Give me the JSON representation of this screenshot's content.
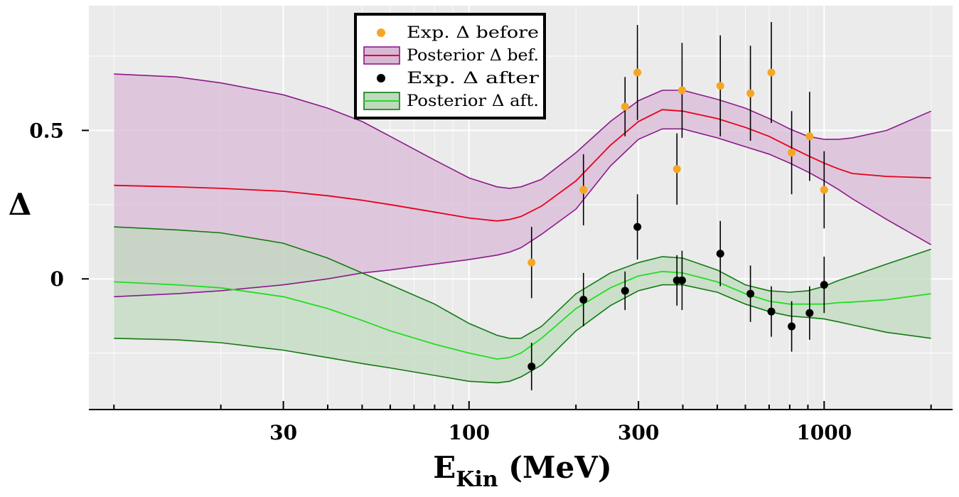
{
  "chart_data": {
    "type": "scatter",
    "xscale": "log",
    "xlim": [
      8.5,
      2300
    ],
    "ylim": [
      -0.44,
      0.92
    ],
    "xlabel": "E",
    "xlabel_sub": "Kin",
    "xlabel_unit": " (MeV)",
    "ylabel": "Δ",
    "xticks": [
      {
        "value": 30,
        "label": "30"
      },
      {
        "value": 100,
        "label": "100"
      },
      {
        "value": 300,
        "label": "300"
      },
      {
        "value": 1000,
        "label": "1000"
      }
    ],
    "yticks": [
      {
        "value": 0.5,
        "label": "0.5"
      },
      {
        "value": 0,
        "label": "0"
      }
    ],
    "minor_yticks": [
      -0.25,
      0.25,
      0.75
    ],
    "minor_xticks": [
      10,
      20,
      40,
      50,
      60,
      70,
      80,
      90,
      200,
      400,
      500,
      600,
      700,
      800,
      900,
      2000
    ],
    "grid": true,
    "legend_position": "top-center",
    "legend": [
      {
        "label": "Exp. Δ  before",
        "kind": "point",
        "color": "#f5a623"
      },
      {
        "label": "Posterior Δ  bef.",
        "kind": "band",
        "line_color": "#e8001c",
        "fill_color": "#d8b8d6",
        "edge_color": "#8b1a8b"
      },
      {
        "label": "Exp. Δ  after",
        "kind": "point",
        "color": "#000000"
      },
      {
        "label": "Posterior Δ  aft.",
        "kind": "band",
        "line_color": "#22dd22",
        "fill_color": "#bfd9be",
        "edge_color": "#127a12"
      }
    ],
    "series": [
      {
        "name": "Posterior Δ  bef.",
        "x": [
          10,
          15,
          20,
          30,
          40,
          50,
          60,
          80,
          100,
          120,
          130,
          140,
          160,
          200,
          250,
          300,
          350,
          400,
          500,
          600,
          700,
          800,
          900,
          1000,
          1100,
          1200,
          1500,
          2000
        ],
        "mean": [
          0.315,
          0.31,
          0.305,
          0.295,
          0.28,
          0.265,
          0.25,
          0.225,
          0.205,
          0.195,
          0.2,
          0.21,
          0.245,
          0.33,
          0.45,
          0.53,
          0.57,
          0.565,
          0.54,
          0.51,
          0.48,
          0.445,
          0.415,
          0.39,
          0.37,
          0.355,
          0.345,
          0.34
        ],
        "lower": [
          -0.06,
          -0.05,
          -0.04,
          -0.02,
          0,
          0.02,
          0.03,
          0.05,
          0.065,
          0.08,
          0.09,
          0.105,
          0.15,
          0.235,
          0.38,
          0.47,
          0.505,
          0.505,
          0.475,
          0.445,
          0.42,
          0.39,
          0.36,
          0.33,
          0.3,
          0.27,
          0.2,
          0.115
        ],
        "upper": [
          0.69,
          0.68,
          0.66,
          0.62,
          0.575,
          0.53,
          0.48,
          0.4,
          0.34,
          0.31,
          0.305,
          0.31,
          0.335,
          0.425,
          0.53,
          0.6,
          0.635,
          0.635,
          0.605,
          0.575,
          0.54,
          0.505,
          0.48,
          0.47,
          0.47,
          0.475,
          0.5,
          0.565
        ],
        "line_color": "#e8001c",
        "fill_color": "#d8b8d6",
        "edge_color": "#8b1a8b"
      },
      {
        "name": "Posterior Δ  aft.",
        "x": [
          10,
          15,
          20,
          30,
          40,
          50,
          60,
          80,
          100,
          120,
          130,
          140,
          160,
          200,
          250,
          300,
          350,
          400,
          500,
          600,
          700,
          800,
          900,
          1000,
          1100,
          1200,
          1500,
          2000
        ],
        "mean": [
          -0.01,
          -0.02,
          -0.03,
          -0.06,
          -0.1,
          -0.14,
          -0.175,
          -0.22,
          -0.25,
          -0.27,
          -0.265,
          -0.25,
          -0.2,
          -0.1,
          -0.03,
          0.01,
          0.025,
          0.02,
          -0.01,
          -0.05,
          -0.075,
          -0.085,
          -0.085,
          -0.085,
          -0.08,
          -0.078,
          -0.07,
          -0.05
        ],
        "lower": [
          -0.2,
          -0.205,
          -0.215,
          -0.24,
          -0.265,
          -0.285,
          -0.3,
          -0.325,
          -0.345,
          -0.35,
          -0.345,
          -0.33,
          -0.29,
          -0.175,
          -0.09,
          -0.04,
          -0.02,
          -0.02,
          -0.045,
          -0.085,
          -0.11,
          -0.125,
          -0.13,
          -0.135,
          -0.145,
          -0.155,
          -0.18,
          -0.2
        ],
        "upper": [
          0.175,
          0.165,
          0.155,
          0.12,
          0.07,
          0.02,
          -0.02,
          -0.085,
          -0.15,
          -0.19,
          -0.2,
          -0.2,
          -0.16,
          -0.05,
          0.02,
          0.055,
          0.075,
          0.07,
          0.03,
          -0.02,
          -0.04,
          -0.045,
          -0.04,
          -0.025,
          -0.005,
          0.01,
          0.05,
          0.1
        ],
        "line_color": "#22dd22",
        "fill_color": "#bfd9be",
        "edge_color": "#127a12"
      },
      {
        "name": "Exp. Δ  before",
        "color": "#f5a623",
        "points": [
          {
            "x": 150,
            "y": 0.055,
            "err": 0.12
          },
          {
            "x": 210,
            "y": 0.3,
            "err": 0.12
          },
          {
            "x": 275,
            "y": 0.58,
            "err": 0.1
          },
          {
            "x": 298,
            "y": 0.695,
            "err": 0.16
          },
          {
            "x": 385,
            "y": 0.37,
            "err": 0.12
          },
          {
            "x": 398,
            "y": 0.635,
            "err": 0.16
          },
          {
            "x": 510,
            "y": 0.65,
            "err": 0.17
          },
          {
            "x": 620,
            "y": 0.625,
            "err": 0.16
          },
          {
            "x": 710,
            "y": 0.695,
            "err": 0.17
          },
          {
            "x": 810,
            "y": 0.425,
            "err": 0.14
          },
          {
            "x": 910,
            "y": 0.48,
            "err": 0.15
          },
          {
            "x": 1000,
            "y": 0.3,
            "err": 0.13
          }
        ]
      },
      {
        "name": "Exp. Δ  after",
        "color": "#000000",
        "points": [
          {
            "x": 150,
            "y": -0.295,
            "err": 0.08
          },
          {
            "x": 210,
            "y": -0.07,
            "err": 0.09
          },
          {
            "x": 275,
            "y": -0.04,
            "err": 0.065
          },
          {
            "x": 298,
            "y": 0.175,
            "err": 0.11
          },
          {
            "x": 385,
            "y": -0.005,
            "err": 0.085
          },
          {
            "x": 398,
            "y": -0.005,
            "err": 0.1
          },
          {
            "x": 510,
            "y": 0.085,
            "err": 0.11
          },
          {
            "x": 620,
            "y": -0.05,
            "err": 0.095
          },
          {
            "x": 710,
            "y": -0.11,
            "err": 0.085
          },
          {
            "x": 810,
            "y": -0.16,
            "err": 0.085
          },
          {
            "x": 910,
            "y": -0.115,
            "err": 0.09
          },
          {
            "x": 1000,
            "y": -0.02,
            "err": 0.095
          }
        ]
      }
    ]
  }
}
